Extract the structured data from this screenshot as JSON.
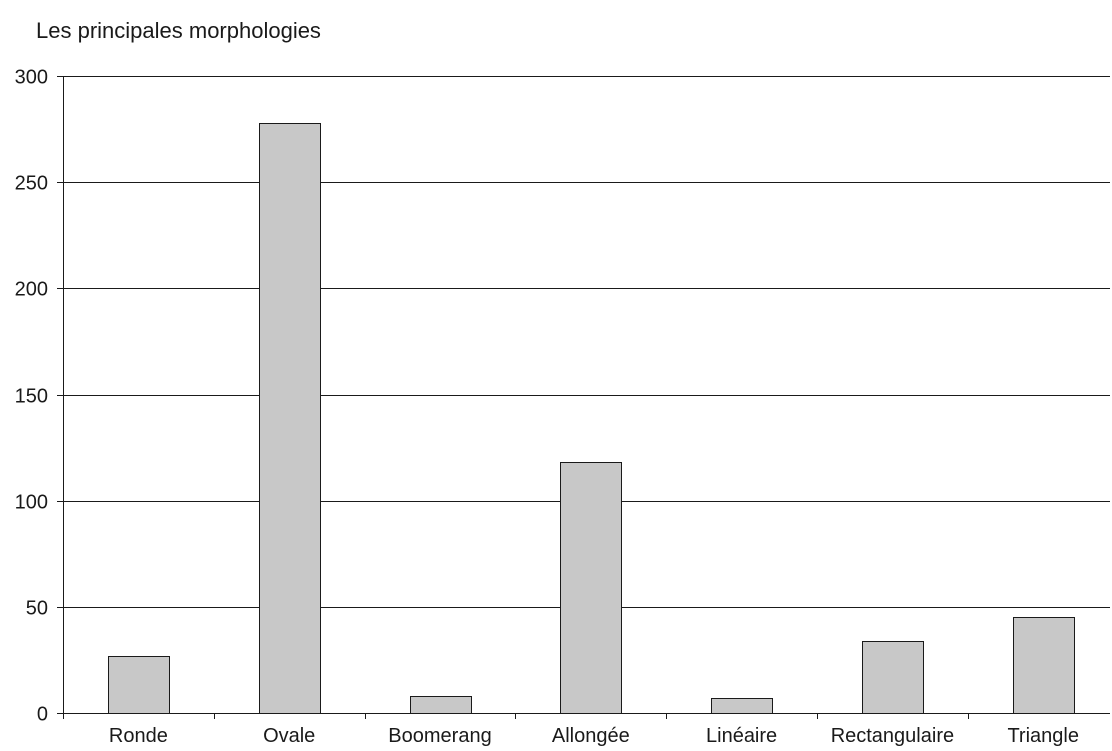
{
  "chart_data": {
    "type": "bar",
    "title": "Les principales morphologies",
    "xlabel": "",
    "ylabel": "",
    "categories": [
      "Ronde",
      "Ovale",
      "Boomerang",
      "Allongée",
      "Linéaire",
      "Rectangulaire",
      "Triangle"
    ],
    "values": [
      27,
      278,
      8,
      118,
      7,
      34,
      45
    ],
    "ylim": [
      0,
      300
    ],
    "yticks": [
      0,
      50,
      100,
      150,
      200,
      250,
      300
    ],
    "grid": true,
    "legend": "none",
    "colors": {
      "bar_fill": "#c8c8c8",
      "bar_stroke": "#1a1a1a",
      "grid": "#1a1a1a",
      "text": "#1a1a1a"
    }
  }
}
